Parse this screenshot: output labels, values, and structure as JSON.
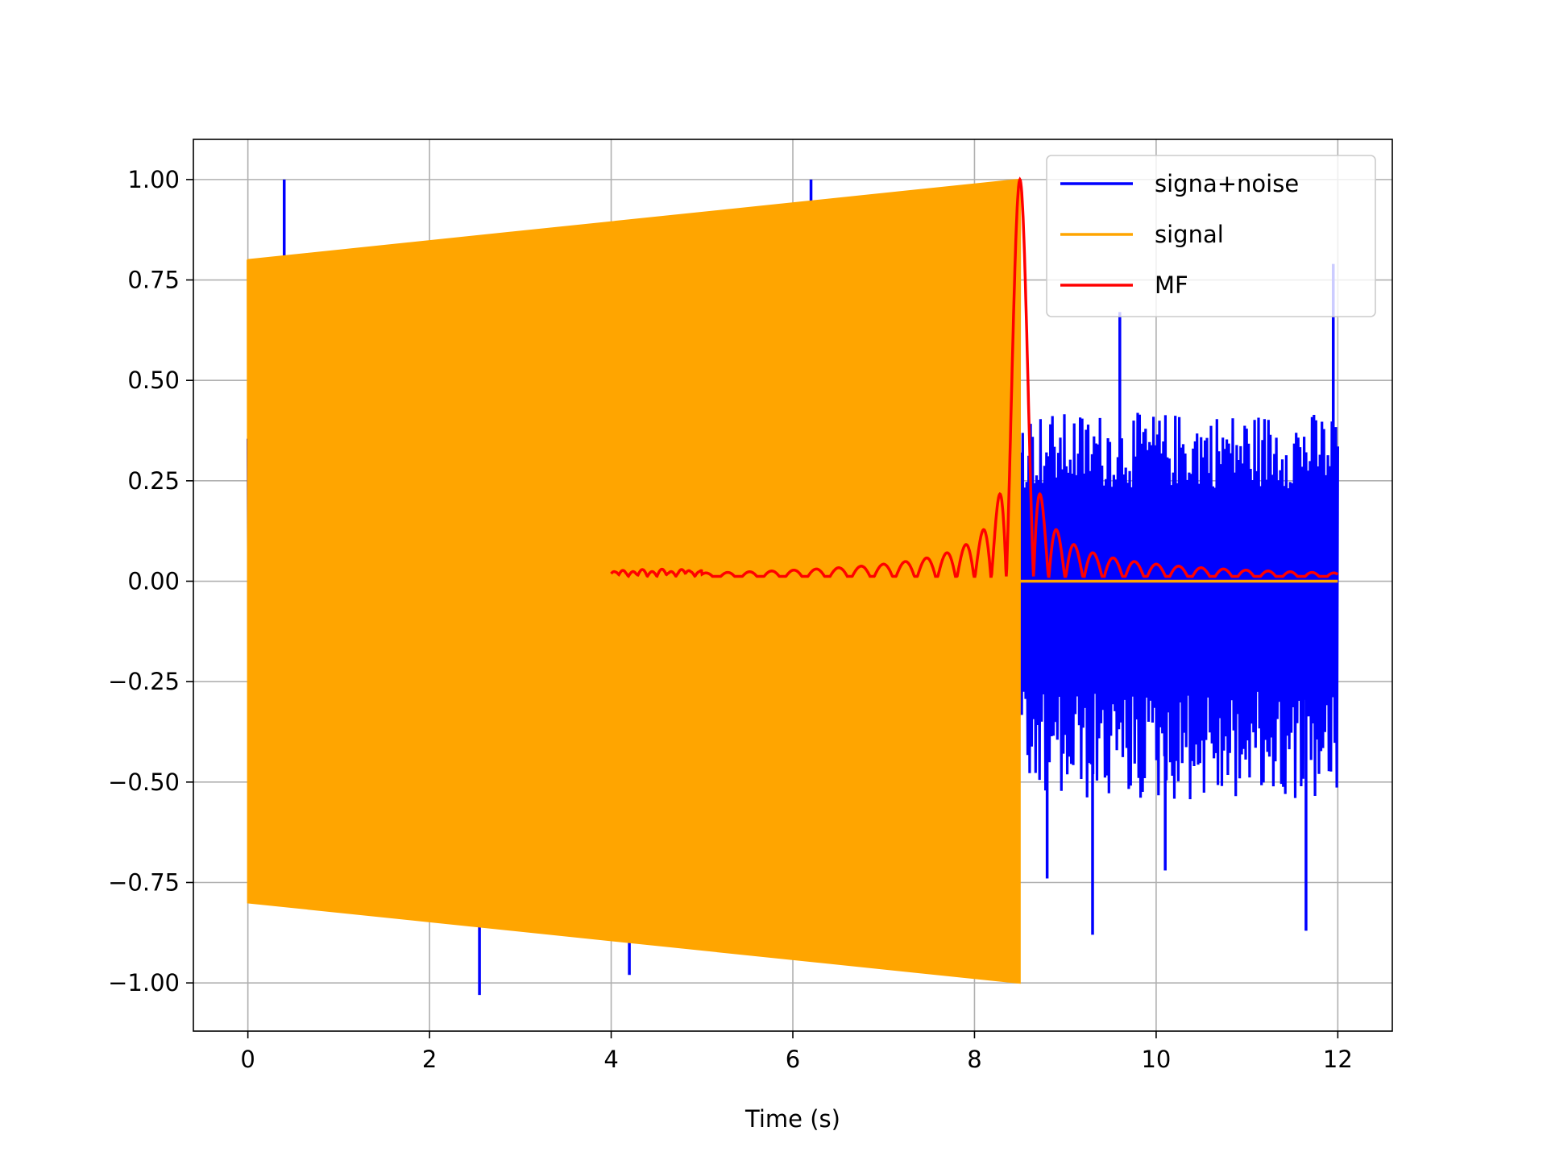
{
  "chart_data": {
    "type": "line",
    "title": "",
    "xlabel": "Time (s)",
    "ylabel": "",
    "xlim": [
      -0.6,
      12.6
    ],
    "ylim": [
      -1.12,
      1.1
    ],
    "grid": true,
    "legend_position": "top-right",
    "xticks": [
      0,
      2,
      4,
      6,
      8,
      10,
      12
    ],
    "xtick_labels": [
      "0",
      "2",
      "4",
      "6",
      "8",
      "10",
      "12"
    ],
    "yticks": [
      1.0,
      0.75,
      0.5,
      0.25,
      0.0,
      -0.25,
      -0.5,
      -0.75,
      -1.0
    ],
    "ytick_labels": [
      "1.00",
      "0.75",
      "0.50",
      "0.25",
      "0.00",
      "−0.25",
      "−0.50",
      "−0.75",
      "−1.00"
    ],
    "series": [
      {
        "name": "signa+noise",
        "color": "#0000ff",
        "t_start": 0,
        "t_end": 12,
        "noise_band": [
          -0.55,
          0.42
        ],
        "peaks": [
          {
            "x": 0.4,
            "y": 1.0
          },
          {
            "x": 1.67,
            "y": 0.84
          },
          {
            "x": 6.2,
            "y": 1.0
          },
          {
            "x": 2.55,
            "y": -1.03
          },
          {
            "x": 4.2,
            "y": -0.98
          },
          {
            "x": 5.2,
            "y": -0.92
          },
          {
            "x": 8.8,
            "y": -0.74
          },
          {
            "x": 9.3,
            "y": -0.88
          },
          {
            "x": 11.65,
            "y": -0.87
          },
          {
            "x": 11.95,
            "y": 0.79
          },
          {
            "x": 10.1,
            "y": -0.72
          },
          {
            "x": 9.6,
            "y": 0.67
          }
        ]
      },
      {
        "name": "signal",
        "color": "#ffa500",
        "t_start": 0,
        "t_end": 8.5,
        "envelope_start": 0.8,
        "envelope_end": 1.0,
        "zero_after": 12
      },
      {
        "name": "MF",
        "color": "#ff0000",
        "t_start": 4,
        "t_end": 12,
        "peak_x": 8.5,
        "peak_y": 1.0
      }
    ]
  }
}
